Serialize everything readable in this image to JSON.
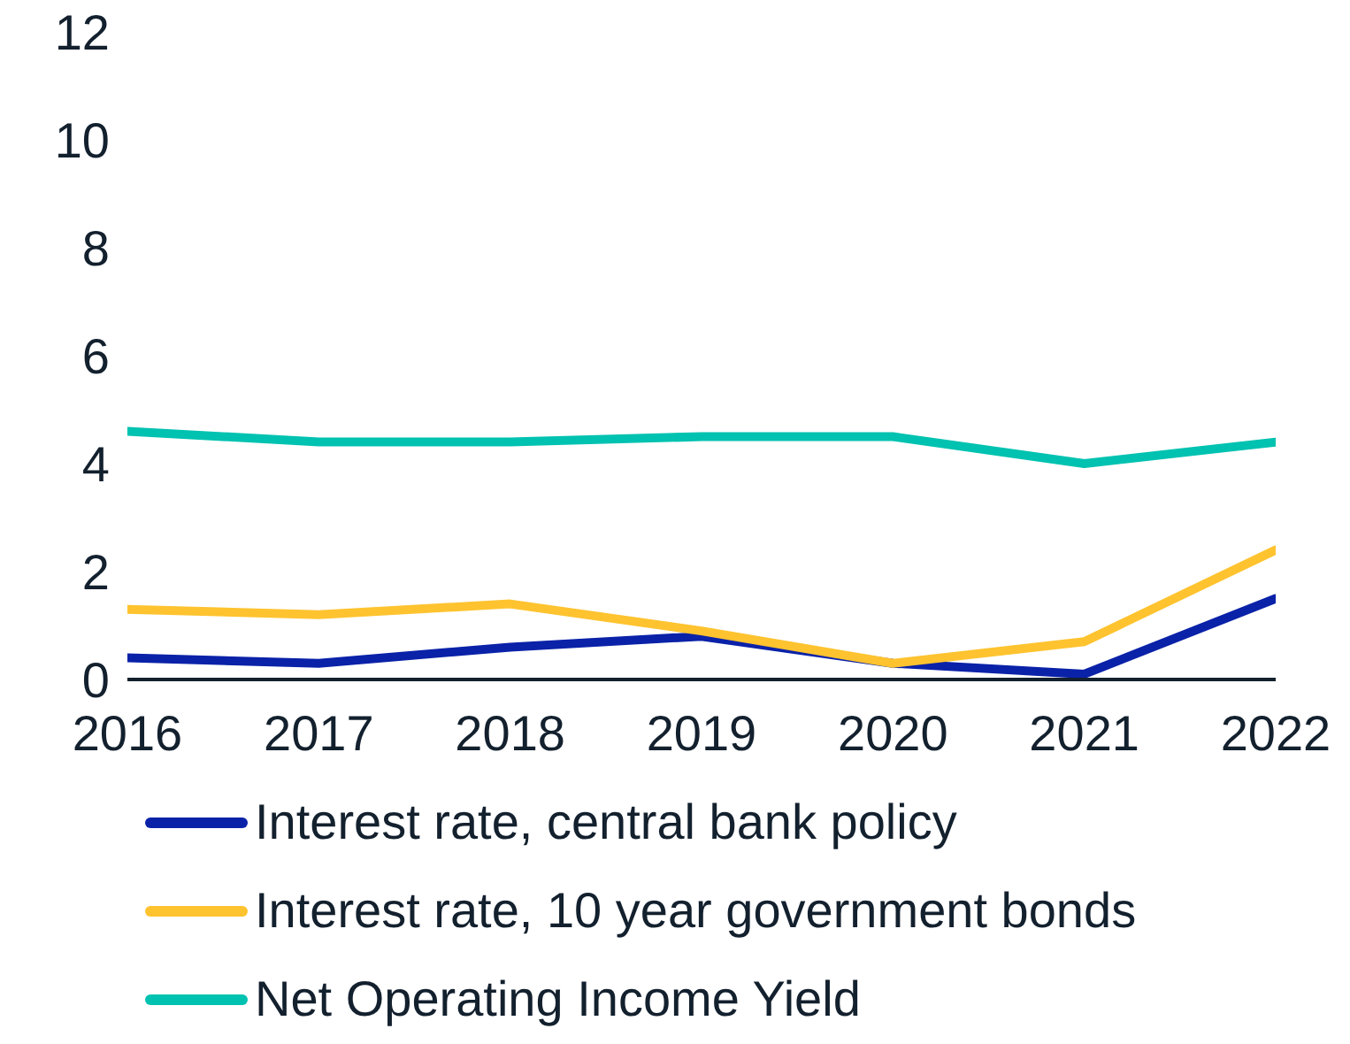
{
  "chart_data": {
    "type": "line",
    "x": [
      2016,
      2017,
      2018,
      2019,
      2020,
      2021,
      2022
    ],
    "xlim": [
      2016,
      2022
    ],
    "xticks": [
      2016,
      2017,
      2018,
      2019,
      2020,
      2021,
      2022
    ],
    "ylim": [
      0,
      12
    ],
    "yticks": [
      0,
      2,
      4,
      6,
      8,
      10,
      12
    ],
    "grid": false,
    "legend": "bottom",
    "marker": "none",
    "line_style": "solid",
    "series": [
      {
        "name": "Interest rate, central bank policy",
        "color": "#0a22a8",
        "values": [
          0.4,
          0.3,
          0.6,
          0.8,
          0.3,
          0.1,
          1.5
        ]
      },
      {
        "name": "Interest rate, 10 year government bonds",
        "color": "#fec32f",
        "values": [
          1.3,
          1.2,
          1.4,
          0.9,
          0.3,
          0.7,
          2.4
        ]
      },
      {
        "name": "Net Operating Income Yield",
        "color": "#00c2b0",
        "values": [
          4.6,
          4.4,
          4.4,
          4.5,
          4.5,
          4.0,
          4.4
        ]
      }
    ]
  }
}
